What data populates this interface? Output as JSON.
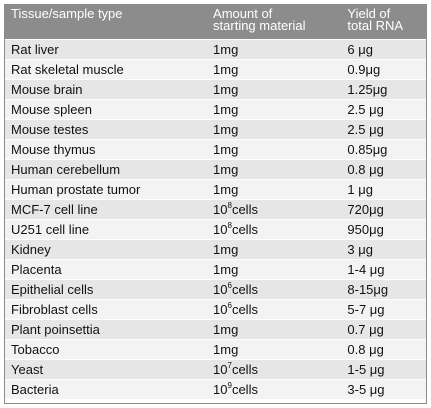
{
  "table": {
    "headers": {
      "col1": "Tissue/sample type",
      "col2_line1": "Amount of",
      "col2_line2": "starting material",
      "col3_line1": "Yield of",
      "col3_line2": "total RNA"
    },
    "rows": [
      {
        "tissue": "Rat liver",
        "amount": "1mg",
        "amount_base": "",
        "amount_exp": "",
        "amount_unit": "",
        "yield": "6 μg"
      },
      {
        "tissue": "Rat skeletal muscle",
        "amount": "1mg",
        "amount_base": "",
        "amount_exp": "",
        "amount_unit": "",
        "yield": "0.9μg"
      },
      {
        "tissue": "Mouse brain",
        "amount": "1mg",
        "amount_base": "",
        "amount_exp": "",
        "amount_unit": "",
        "yield": "1.25μg"
      },
      {
        "tissue": "Mouse spleen",
        "amount": "1mg",
        "amount_base": "",
        "amount_exp": "",
        "amount_unit": "",
        "yield": "2.5 μg"
      },
      {
        "tissue": "Mouse testes",
        "amount": "1mg",
        "amount_base": "",
        "amount_exp": "",
        "amount_unit": "",
        "yield": "2.5 μg"
      },
      {
        "tissue": "Mouse thymus",
        "amount": "1mg",
        "amount_base": "",
        "amount_exp": "",
        "amount_unit": "",
        "yield": "0.85μg"
      },
      {
        "tissue": "Human cerebellum",
        "amount": "1mg",
        "amount_base": "",
        "amount_exp": "",
        "amount_unit": "",
        "yield": "0.8 μg"
      },
      {
        "tissue": "Human prostate tumor",
        "amount": "1mg",
        "amount_base": "",
        "amount_exp": "",
        "amount_unit": "",
        "yield": "1 μg"
      },
      {
        "tissue": "MCF-7 cell line",
        "amount": "",
        "amount_base": "10",
        "amount_exp": "8",
        "amount_unit": "cells",
        "yield": "720μg"
      },
      {
        "tissue": "U251 cell line",
        "amount": "",
        "amount_base": "10",
        "amount_exp": "8",
        "amount_unit": "cells",
        "yield": "950μg"
      },
      {
        "tissue": "Kidney",
        "amount": "1mg",
        "amount_base": "",
        "amount_exp": "",
        "amount_unit": "",
        "yield": "3 μg"
      },
      {
        "tissue": "Placenta",
        "amount": "1mg",
        "amount_base": "",
        "amount_exp": "",
        "amount_unit": "",
        "yield": "1-4 μg"
      },
      {
        "tissue": "Epithelial cells",
        "amount": "",
        "amount_base": "10",
        "amount_exp": "6",
        "amount_unit": "cells",
        "yield": "8-15μg"
      },
      {
        "tissue": "Fibroblast cells",
        "amount": "",
        "amount_base": "10",
        "amount_exp": "6",
        "amount_unit": "cells",
        "yield": "5-7 μg"
      },
      {
        "tissue": "Plant poinsettia",
        "amount": "1mg",
        "amount_base": "",
        "amount_exp": "",
        "amount_unit": "",
        "yield": "0.7 μg"
      },
      {
        "tissue": "Tobacco",
        "amount": "1mg",
        "amount_base": "",
        "amount_exp": "",
        "amount_unit": "",
        "yield": "0.8 μg"
      },
      {
        "tissue": "Yeast",
        "amount": "",
        "amount_base": "10",
        "amount_exp": "7",
        "amount_unit": "cells",
        "yield": "1-5 μg"
      },
      {
        "tissue": "Bacteria",
        "amount": "",
        "amount_base": "10",
        "amount_exp": "9",
        "amount_unit": "cells",
        "yield": "3-5 μg"
      }
    ]
  },
  "colors": {
    "header_bg": "#8c8c8c",
    "row_odd": "#e6e6e6",
    "row_even": "#f3f3f3"
  }
}
